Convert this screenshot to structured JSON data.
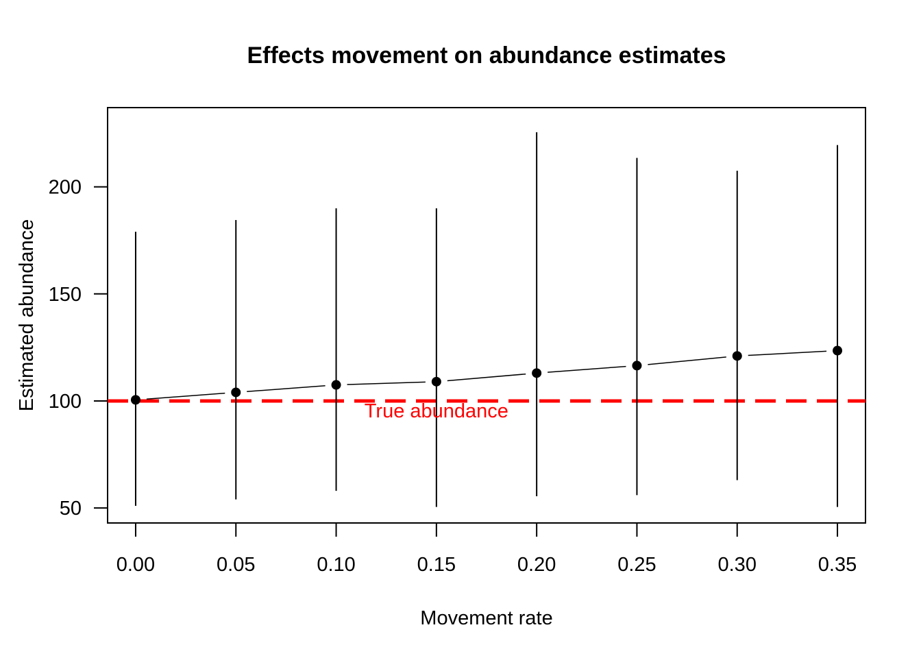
{
  "chart_data": {
    "type": "scatter",
    "title": "Effects movement on abundance estimates",
    "xlabel": "Movement rate",
    "ylabel": "Estimated abundance",
    "x": [
      0.0,
      0.05,
      0.1,
      0.15,
      0.2,
      0.25,
      0.3,
      0.35
    ],
    "x_tick_labels": [
      "0.00",
      "0.05",
      "0.10",
      "0.15",
      "0.20",
      "0.25",
      "0.30",
      "0.35"
    ],
    "y_ticks": [
      50,
      100,
      150,
      200
    ],
    "y_tick_labels": [
      "50",
      "100",
      "150",
      "200"
    ],
    "xlim": [
      -0.014,
      0.364
    ],
    "ylim": [
      43,
      237
    ],
    "series": [
      {
        "values": [
          100.5,
          104,
          107.5,
          109,
          113,
          116.5,
          121,
          123.5
        ],
        "lower": [
          51,
          54,
          58,
          50.5,
          55.5,
          56,
          63,
          50.5
        ],
        "upper": [
          179,
          184.5,
          190,
          190,
          225.5,
          213.5,
          207.5,
          219.5
        ],
        "color": "#000000",
        "style": "points-with-line-and-error-bars"
      }
    ],
    "reference_line": {
      "y": 100,
      "color": "#ff0000",
      "style": "dashed"
    },
    "annotation": {
      "text": "True abundance",
      "x": 0.15,
      "y": 95.5,
      "color": "#ff0000"
    },
    "grid": false
  }
}
